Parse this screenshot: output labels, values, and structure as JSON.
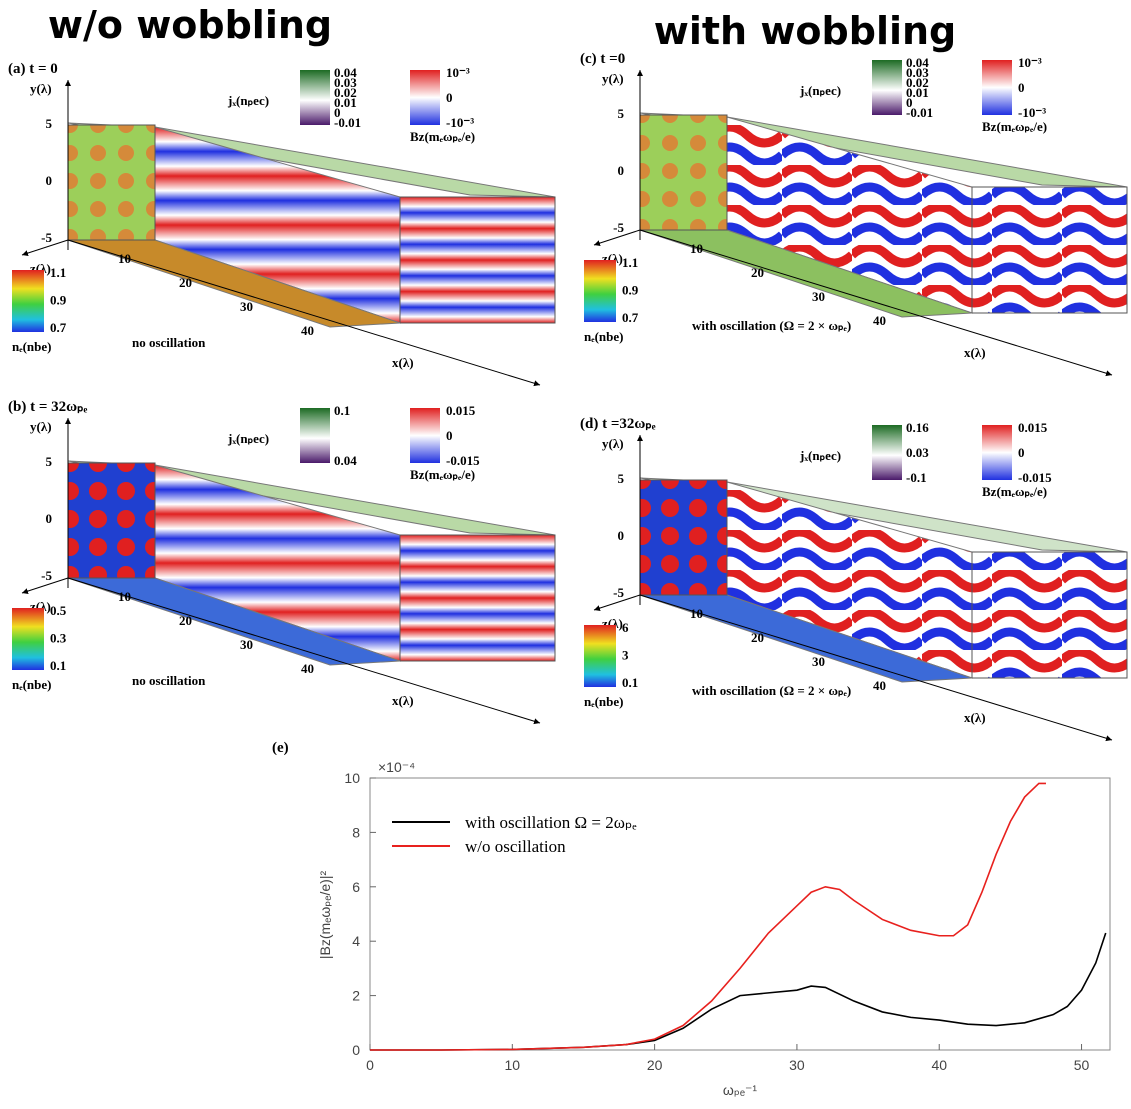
{
  "headings": [
    "w/o wobbling",
    "with wobbling"
  ],
  "panels": [
    {
      "label": "(a) t = 0",
      "y_axis": "y(λ)",
      "z_axis": "z(λ)",
      "x_axis": "x(λ)",
      "y_ticks": [
        "5",
        "0",
        "-5"
      ],
      "x_ticks": [
        "10",
        "20",
        "30",
        "40"
      ],
      "j_label": "jₓ(nₚec)",
      "j_ticks": [
        "0.04",
        "0.03",
        "0.02",
        "0.01",
        "0",
        "-0.01"
      ],
      "b_label": "Bz(mₑωₚₑ/e)",
      "b_ticks": [
        "10⁻³",
        "0",
        "-10⁻³"
      ],
      "n_label": "nₑ(nbe)",
      "n_ticks": [
        "1.1",
        "0.9",
        "0.7"
      ],
      "note": "no oscillation"
    },
    {
      "label": "(b) t = 32ωₚₑ",
      "y_axis": "y(λ)",
      "z_axis": "z(λ)",
      "x_axis": "x(λ)",
      "y_ticks": [
        "5",
        "0",
        "-5"
      ],
      "x_ticks": [
        "10",
        "20",
        "30",
        "40"
      ],
      "j_label": "jₓ(nₚec)",
      "j_ticks": [
        "0.1",
        "0.04"
      ],
      "b_label": "Bz(mₑωₚₑ/e)",
      "b_ticks": [
        "0.015",
        "0",
        "-0.015"
      ],
      "n_label": "nₑ(nbe)",
      "n_ticks": [
        "0.5",
        "0.3",
        "0.1"
      ],
      "note": "no oscillation"
    },
    {
      "label": "(c) t =0",
      "y_axis": "y(λ)",
      "z_axis": "z(λ)",
      "x_axis": "x(λ)",
      "y_ticks": [
        "5",
        "0",
        "-5"
      ],
      "x_ticks": [
        "10",
        "20",
        "30",
        "40"
      ],
      "j_label": "jₓ(nₚec)",
      "j_ticks": [
        "0.04",
        "0.03",
        "0.02",
        "0.01",
        "0",
        "-0.01"
      ],
      "b_label": "Bz(mₑωₚₑ/e)",
      "b_ticks": [
        "10⁻³",
        "0",
        "-10⁻³"
      ],
      "n_label": "nₑ(nbe)",
      "n_ticks": [
        "1.1",
        "0.9",
        "0.7"
      ],
      "note": "with oscillation (Ω = 2 × ωₚₑ)"
    },
    {
      "label": "(d) t =32ωₚₑ",
      "y_axis": "y(λ)",
      "z_axis": "z(λ)",
      "x_axis": "x(λ)",
      "y_ticks": [
        "5",
        "0",
        "-5"
      ],
      "x_ticks": [
        "10",
        "20",
        "30",
        "40"
      ],
      "j_label": "jₓ(nₚec)",
      "j_ticks": [
        "0.16",
        "0.03",
        "-0.1"
      ],
      "b_label": "Bz(mₑωₚₑ/e)",
      "b_ticks": [
        "0.015",
        "0",
        "-0.015"
      ],
      "n_label": "nₑ(nbe)",
      "n_ticks": [
        "6",
        "3",
        "0.1"
      ],
      "note": "with oscillation (Ω = 2 × ωₚₑ)"
    }
  ],
  "chart_data": {
    "type": "line",
    "panel_label": "(e)",
    "multiplier": "×10⁻⁴",
    "y_label": "|Bz(mₑωₚₑ/e)|²",
    "x_label": "ωₚₑ⁻¹",
    "xlim": [
      0,
      52
    ],
    "xticks": [
      0,
      10,
      20,
      30,
      40,
      50
    ],
    "ylim": [
      0,
      10
    ],
    "yticks": [
      0,
      2,
      4,
      6,
      8,
      10
    ],
    "series": [
      {
        "name": "with oscillation Ω = 2ωₚₑ",
        "color": "#000000",
        "x": [
          0,
          5,
          10,
          15,
          18,
          20,
          22,
          24,
          26,
          28,
          30,
          31,
          32,
          34,
          36,
          38,
          40,
          42,
          44,
          46,
          48,
          49,
          50,
          51,
          51.7
        ],
        "values": [
          0,
          0,
          0.02,
          0.1,
          0.2,
          0.35,
          0.8,
          1.5,
          2,
          2.1,
          2.2,
          2.35,
          2.3,
          1.8,
          1.4,
          1.2,
          1.1,
          0.95,
          0.9,
          1.0,
          1.3,
          1.6,
          2.2,
          3.2,
          4.3
        ]
      },
      {
        "name": "w/o oscillation",
        "color": "#e8211e",
        "x": [
          0,
          5,
          10,
          15,
          18,
          20,
          22,
          24,
          26,
          28,
          30,
          31,
          32,
          33,
          34,
          36,
          38,
          40,
          41,
          42,
          43,
          44,
          45,
          46,
          47,
          47.5
        ],
        "values": [
          0,
          0,
          0.02,
          0.1,
          0.2,
          0.4,
          0.9,
          1.8,
          3,
          4.3,
          5.3,
          5.8,
          6,
          5.9,
          5.5,
          4.8,
          4.4,
          4.2,
          4.2,
          4.6,
          5.8,
          7.2,
          8.4,
          9.3,
          9.8,
          9.8
        ]
      }
    ]
  }
}
